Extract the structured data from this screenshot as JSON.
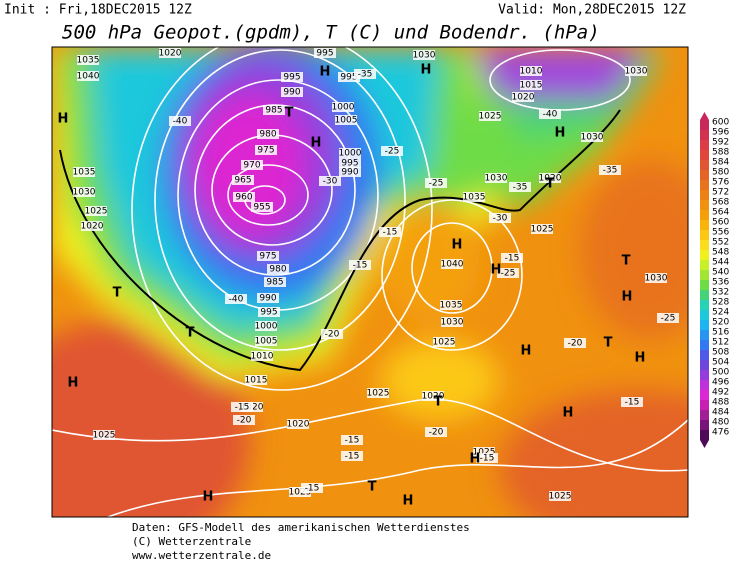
{
  "header": {
    "init": "Init : Fri,18DEC2015 12Z",
    "valid": "Valid: Mon,28DEC2015 12Z",
    "title": "500 hPa Geopot.(gpdm), T (C) und Bodendr. (hPa)"
  },
  "footer": {
    "line1": "Daten: GFS-Modell des amerikanischen Wetterdienstes",
    "line2": "(C) Wetterzentrale",
    "line3": "www.wetterzentrale.de"
  },
  "colorbar": {
    "levels": [
      600,
      596,
      592,
      588,
      584,
      580,
      576,
      572,
      568,
      564,
      560,
      556,
      552,
      548,
      544,
      540,
      536,
      532,
      528,
      524,
      520,
      516,
      512,
      508,
      504,
      500,
      496,
      492,
      488,
      484,
      480,
      476
    ],
    "colors": [
      "#c8285a",
      "#d23250",
      "#dc3c46",
      "#e0463c",
      "#e05532",
      "#e46428",
      "#e8731e",
      "#ec8214",
      "#f0910f",
      "#f4a00a",
      "#f8b40a",
      "#fcc814",
      "#fcdc1e",
      "#f0f01e",
      "#c8f028",
      "#a0e632",
      "#6edc46",
      "#46d278",
      "#28d2b4",
      "#1ec8dc",
      "#1eb4f0",
      "#2896f0",
      "#3278f0",
      "#505ae6",
      "#6e46dc",
      "#963cdc",
      "#be32dc",
      "#dc28d2",
      "#c81eb4",
      "#a01e96",
      "#78147a",
      "#500a5a"
    ]
  },
  "map": {
    "pressure_labels": [
      "1020",
      "1035",
      "1040",
      "995",
      "995",
      "995",
      "990",
      "985",
      "980",
      "975",
      "970",
      "965",
      "960",
      "955",
      "1000",
      "1005",
      "1000",
      "995",
      "990",
      "1030",
      "1010",
      "1015",
      "1020",
      "1030",
      "1025",
      "1030",
      "1035",
      "1030",
      "1025",
      "1020",
      "1030",
      "1020",
      "1035",
      "1025",
      "1040",
      "1035",
      "1030",
      "1025",
      "975",
      "980",
      "985",
      "990",
      "995",
      "1000",
      "1005",
      "1010",
      "1015",
      "1020",
      "1020",
      "1025",
      "1025",
      "1020",
      "1025",
      "1025",
      "1025",
      "1030"
    ],
    "temperature_labels": [
      "-40",
      "-35",
      "-30",
      "-25",
      "-15",
      "-15",
      "-40",
      "-20",
      "-15",
      "-20",
      "-15",
      "-15",
      "-20",
      "-15",
      "-15",
      "-25",
      "-15",
      "-20",
      "-15",
      "-25",
      "-30",
      "-35",
      "-40",
      "-35",
      "-25"
    ],
    "markers": [
      "H",
      "H",
      "H",
      "T",
      "H",
      "H",
      "T",
      "H",
      "T",
      "T",
      "H",
      "H",
      "H",
      "T",
      "H",
      "T",
      "H",
      "T",
      "H",
      "H",
      "T",
      "H",
      "H"
    ]
  }
}
